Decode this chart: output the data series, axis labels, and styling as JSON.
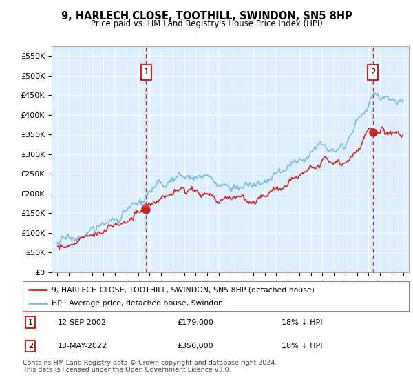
{
  "title": "9, HARLECH CLOSE, TOOTHILL, SWINDON, SN5 8HP",
  "subtitle": "Price paid vs. HM Land Registry's House Price Index (HPI)",
  "ylabel_ticks": [
    "£0",
    "£50K",
    "£100K",
    "£150K",
    "£200K",
    "£250K",
    "£300K",
    "£350K",
    "£400K",
    "£450K",
    "£500K",
    "£550K"
  ],
  "ytick_values": [
    0,
    50000,
    100000,
    150000,
    200000,
    250000,
    300000,
    350000,
    400000,
    450000,
    500000,
    550000
  ],
  "ylim": [
    0,
    575000
  ],
  "hpi_color": "#7ab8d9",
  "price_color": "#cc2222",
  "background_color": "#ddeeff",
  "grid_color": "#ffffff",
  "transaction1_x": 2002.71,
  "transaction1_price": 179000,
  "transaction2_x": 2022.37,
  "transaction2_price": 350000,
  "legend_line1": "9, HARLECH CLOSE, TOOTHILL, SWINDON, SN5 8HP (detached house)",
  "legend_line2": "HPI: Average price, detached house, Swindon",
  "footnote": "Contains HM Land Registry data © Crown copyright and database right 2024.\nThis data is licensed under the Open Government Licence v3.0.",
  "hpi_anchor_years": [
    1995,
    1996,
    1997,
    1998,
    1999,
    2000,
    2001,
    2002,
    2003,
    2004,
    2005,
    2006,
    2007,
    2008,
    2009,
    2010,
    2011,
    2012,
    2013,
    2014,
    2015,
    2016,
    2017,
    2018,
    2019,
    2020,
    2021,
    2022,
    2022.5,
    2023,
    2024,
    2025
  ],
  "hpi_anchor_vals": [
    76000,
    82000,
    92000,
    105000,
    120000,
    137000,
    153000,
    170000,
    195000,
    220000,
    235000,
    245000,
    248000,
    238000,
    218000,
    222000,
    220000,
    217000,
    228000,
    248000,
    265000,
    285000,
    310000,
    325000,
    328000,
    330000,
    380000,
    428000,
    455000,
    445000,
    440000,
    445000
  ],
  "price_anchor_years": [
    1995,
    1996,
    1997,
    1998,
    1999,
    2000,
    2001,
    2002,
    2003,
    2004,
    2005,
    2006,
    2007,
    2008,
    2009,
    2010,
    2011,
    2012,
    2013,
    2014,
    2015,
    2016,
    2017,
    2018,
    2019,
    2020,
    2021,
    2022,
    2023,
    2024,
    2025
  ],
  "price_anchor_vals": [
    65000,
    70000,
    79000,
    90000,
    103000,
    118000,
    132000,
    148000,
    165000,
    188000,
    200000,
    208000,
    210000,
    198000,
    182000,
    185000,
    182000,
    180000,
    192000,
    210000,
    224000,
    242000,
    262000,
    275000,
    278000,
    278000,
    318000,
    358000,
    352000,
    352000,
    355000
  ],
  "xlim": [
    1994.5,
    2025.5
  ]
}
